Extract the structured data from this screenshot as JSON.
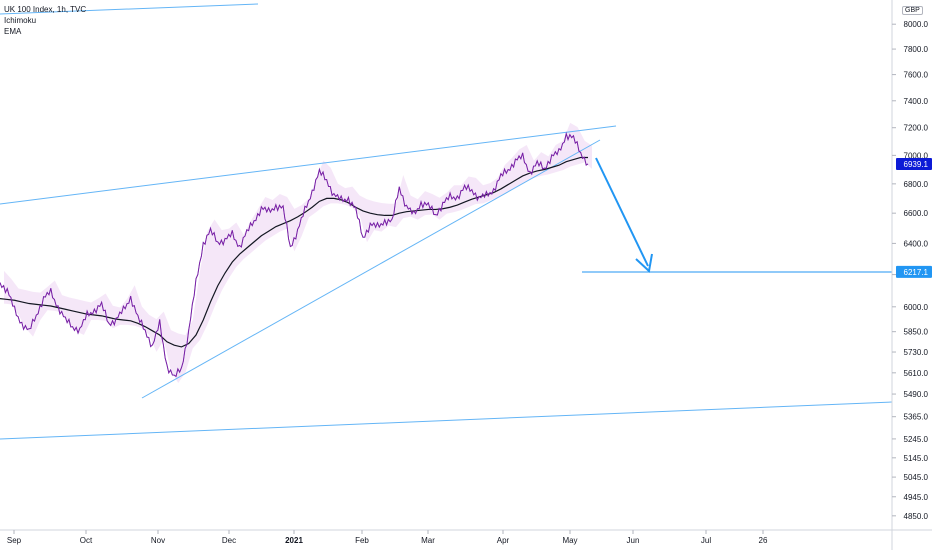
{
  "legend": {
    "symbol": "UK 100 Index, 1h, TVC",
    "indicator_1": "Ichimoku",
    "indicator_2": "EMA"
  },
  "currency_label": "GBP",
  "colors": {
    "price_line": "#7b1fa2",
    "price_line_alt": "#3d5afe",
    "ema": "#131722",
    "cloud": "#e9c9f0",
    "trendline": "#64b5f6",
    "arrow": "#2196f3",
    "last_price_badge": "#0d1bd6",
    "target_badge": "#2196f3",
    "axis_text": "#131722"
  },
  "chart_data": {
    "type": "line",
    "title": "UK 100 Index, 1h, TVC",
    "y_scale": "log",
    "ylim": [
      4800,
      8100
    ],
    "x_ticks": [
      "Sep",
      "Oct",
      "Nov",
      "Dec",
      "2021",
      "Feb",
      "Mar",
      "Apr",
      "May",
      "Jun",
      "Jul",
      "26"
    ],
    "y_ticks": [
      "8000.0",
      "7800.0",
      "7600.0",
      "7400.0",
      "7200.0",
      "7000.0",
      "6800.0",
      "6600.0",
      "6400.0",
      "6200.0",
      "6000.0",
      "5850.0",
      "5730.0",
      "5610.0",
      "5490.0",
      "5365.0",
      "5245.0",
      "5145.0",
      "5045.0",
      "4945.0",
      "4850.0"
    ],
    "y_tick_values": [
      8000,
      7800,
      7600,
      7400,
      7200,
      7000,
      6800,
      6600,
      6400,
      6200,
      6000,
      5850,
      5730,
      5610,
      5490,
      5365,
      5245,
      5145,
      5045,
      4945,
      4850
    ],
    "last_price": {
      "label": "6939.1",
      "value": 6939.1
    },
    "target_price": {
      "label": "6217.1",
      "value": 6217.1
    },
    "series": [
      {
        "name": "",
        "values": [
          6150,
          6100,
          5980,
          5900,
          5850,
          5950,
          6050,
          6090,
          6000,
          5920,
          5880,
          5860,
          5950,
          5980,
          6010,
          5900,
          5920,
          5980,
          6060,
          5930,
          5860,
          5760,
          5900,
          5650,
          5580,
          5640,
          5850,
          6150,
          6400,
          6480,
          6410,
          6420,
          6460,
          6380,
          6470,
          6550,
          6630,
          6610,
          6650,
          6630,
          6380,
          6480,
          6620,
          6750,
          6880,
          6830,
          6720,
          6690,
          6700,
          6620,
          6440,
          6520,
          6510,
          6550,
          6540,
          6780,
          6640,
          6590,
          6670,
          6650,
          6590,
          6660,
          6710,
          6710,
          6770,
          6760,
          6700,
          6720,
          6760,
          6850,
          6900,
          6960,
          6990,
          6880,
          6940,
          6910,
          6990,
          7020,
          7150,
          7120,
          7020,
          6939
        ]
      },
      {
        "name": "EMA",
        "values": [
          6050,
          6045,
          6040,
          6030,
          6020,
          6015,
          6010,
          6005,
          5995,
          5985,
          5975,
          5965,
          5955,
          5950,
          5945,
          5935,
          5925,
          5920,
          5915,
          5900,
          5880,
          5855,
          5830,
          5790,
          5770,
          5760,
          5780,
          5830,
          5920,
          6030,
          6130,
          6210,
          6280,
          6330,
          6370,
          6410,
          6450,
          6480,
          6510,
          6530,
          6550,
          6575,
          6605,
          6640,
          6680,
          6700,
          6700,
          6690,
          6670,
          6640,
          6615,
          6600,
          6590,
          6585,
          6585,
          6600,
          6610,
          6615,
          6620,
          6625,
          6625,
          6630,
          6640,
          6655,
          6675,
          6695,
          6710,
          6725,
          6740,
          6765,
          6795,
          6825,
          6855,
          6875,
          6890,
          6900,
          6915,
          6930,
          6955,
          6970,
          6985,
          6985
        ]
      }
    ]
  }
}
